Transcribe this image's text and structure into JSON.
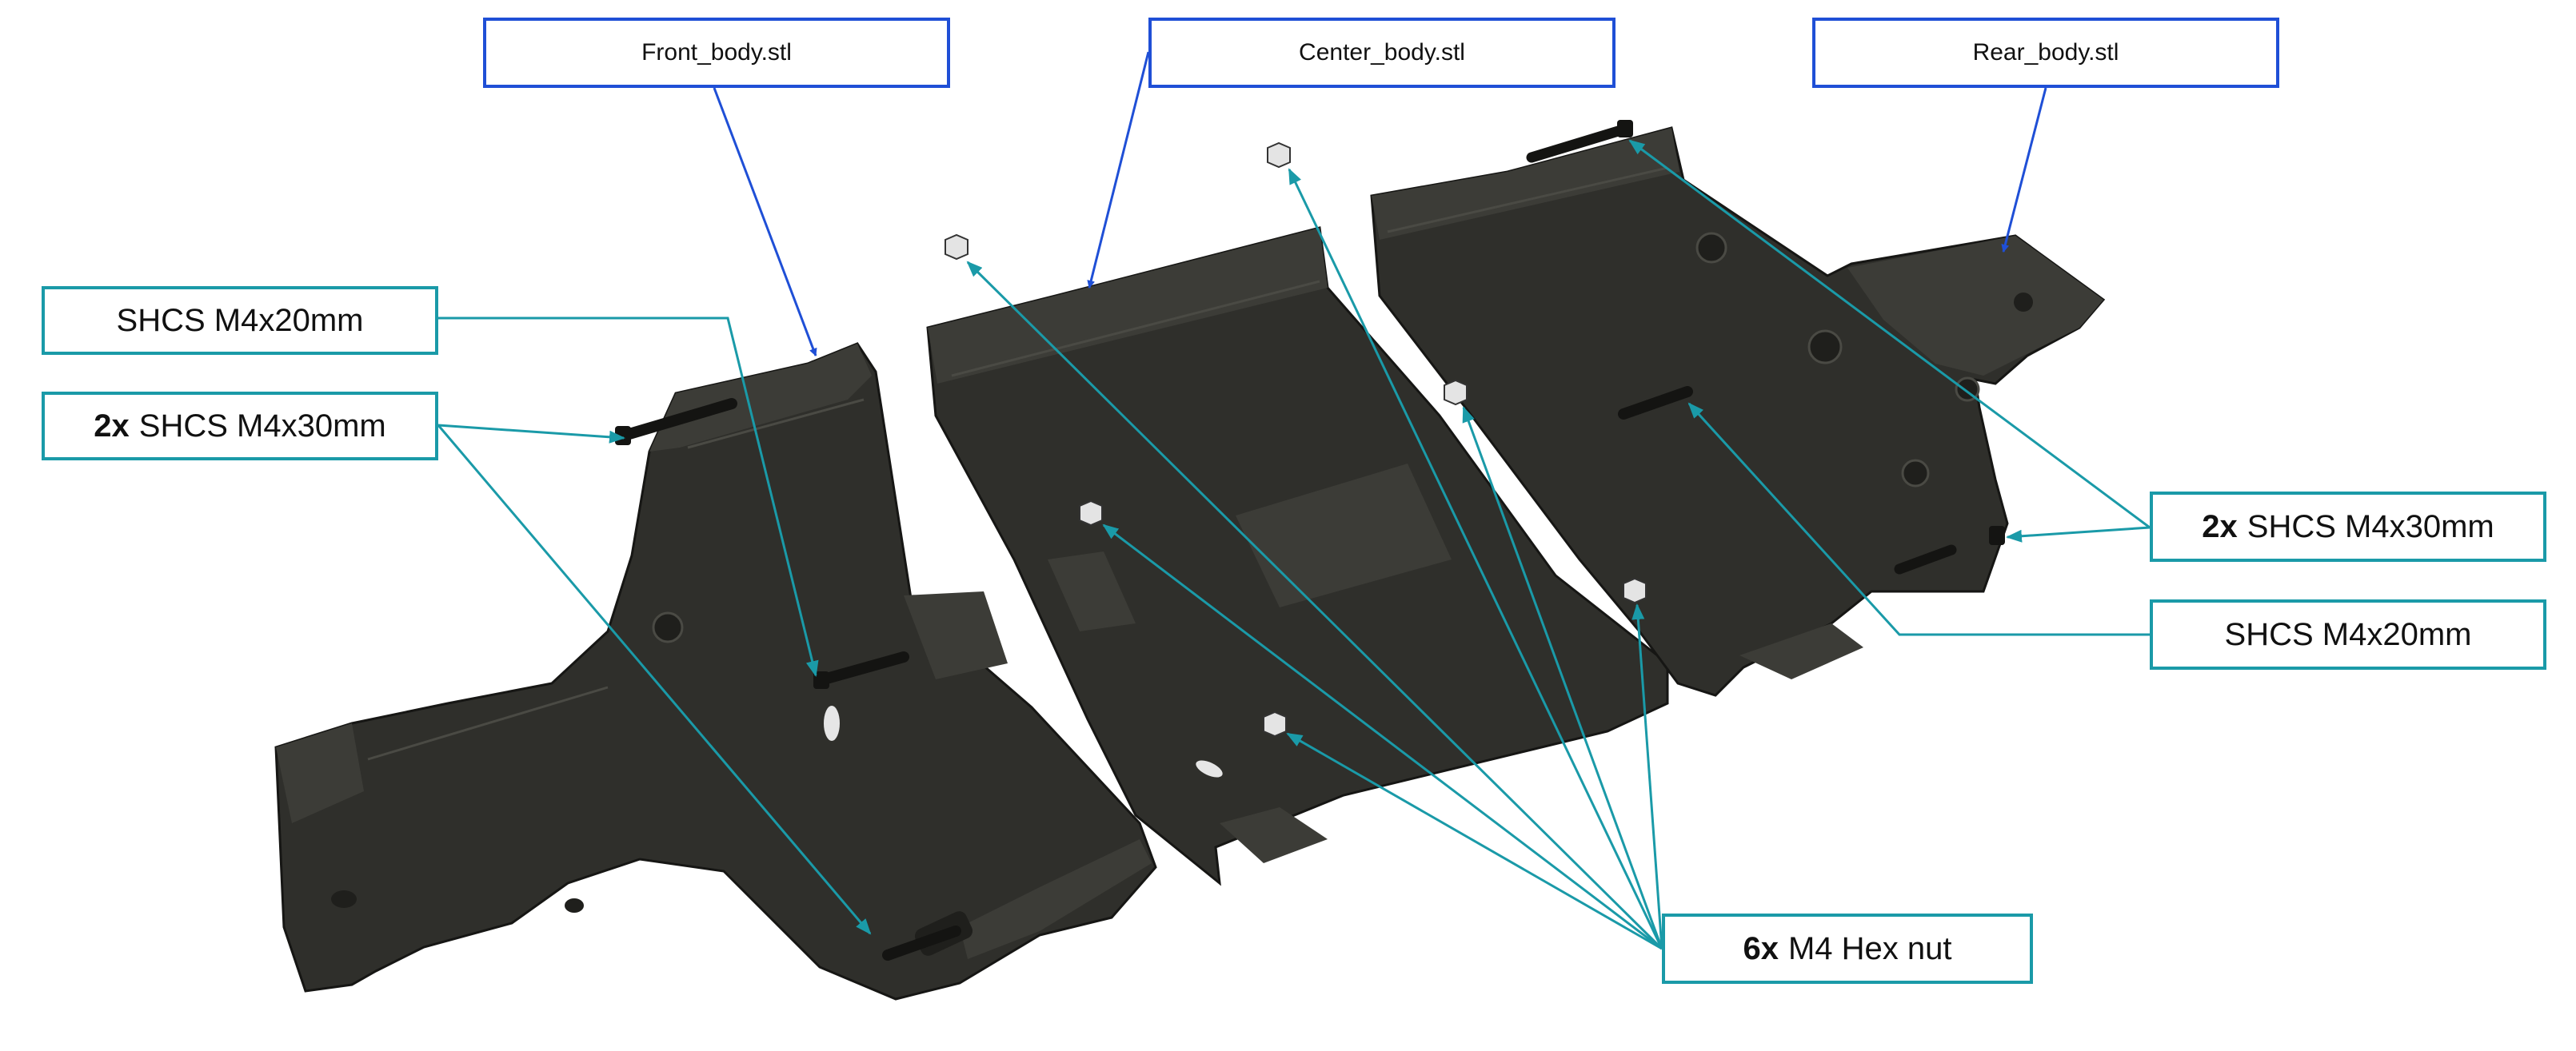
{
  "parts": {
    "front": "Front_body.stl",
    "center": "Center_body.stl",
    "rear": "Rear_body.stl"
  },
  "hardware": {
    "shcs20_left": "SHCS M4x20mm",
    "shcs30_left_qty": "2x",
    "shcs30_left": "SHCS M4x30mm",
    "shcs30_right_qty": "2x",
    "shcs30_right": "SHCS M4x30mm",
    "shcs20_right": "SHCS M4x20mm",
    "hexnut_qty": "6x",
    "hexnut": "M4 Hex nut"
  },
  "colors": {
    "part_label_border": "#1f4fd6",
    "hardware_label_border": "#1a9aa8",
    "part_body": "#2f2f2b"
  }
}
